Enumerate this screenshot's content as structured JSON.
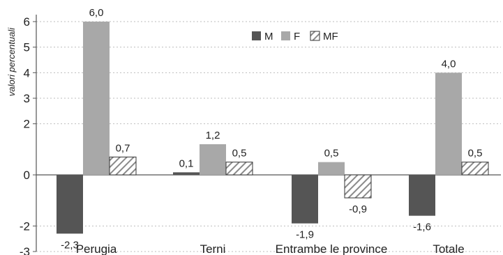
{
  "chart_data": {
    "type": "bar",
    "categories": [
      "Perugia",
      "Terni",
      "Entrambe le province",
      "Totale"
    ],
    "series": [
      {
        "name": "M",
        "color": "#555555",
        "pattern": "solid",
        "values": [
          -2.3,
          0.1,
          -1.9,
          -1.6
        ],
        "labels": [
          "-2,3",
          "0,1",
          "-1,9",
          "-1,6"
        ]
      },
      {
        "name": "F",
        "color": "#a8a8a8",
        "pattern": "solid",
        "values": [
          6.0,
          1.2,
          0.5,
          4.0
        ],
        "labels": [
          "6,0",
          "1,2",
          "0,5",
          "4,0"
        ]
      },
      {
        "name": "MF",
        "color": "#8a8a8a",
        "pattern": "diagonal-hatch",
        "values": [
          0.7,
          0.5,
          -0.9,
          0.5
        ],
        "labels": [
          "0,7",
          "0,5",
          "-0,9",
          "0,5"
        ]
      }
    ],
    "ylabel": "valori percentuali",
    "ylim": [
      -3,
      6
    ],
    "yticks": [
      -3,
      -2,
      0,
      2,
      3,
      4,
      5,
      6
    ],
    "ytick_labels": [
      "-3",
      "-2",
      "0",
      "2",
      "3",
      "4",
      "5",
      "6"
    ],
    "grid": "horizontal dashed",
    "legend": "top-center"
  }
}
